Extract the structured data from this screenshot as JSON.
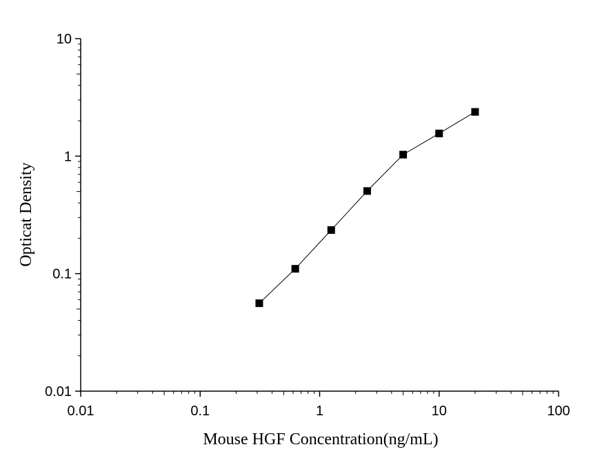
{
  "chart_data": {
    "type": "line",
    "title": "",
    "xlabel": "Mouse HGF  Concentration(ng/mL)",
    "ylabel": "Opticat Density",
    "xscale": "log",
    "yscale": "log",
    "xlim": [
      0.01,
      100
    ],
    "ylim": [
      0.01,
      10
    ],
    "x_ticks": [
      "0.01",
      "0.1",
      "1",
      "10",
      "100"
    ],
    "y_ticks": [
      "0.01",
      "0.1",
      "1",
      "10"
    ],
    "grid": false,
    "legend": "none",
    "marker": "square",
    "color": "#000000",
    "series": [
      {
        "x": [
          0.3125,
          0.625,
          1.25,
          2.5,
          5,
          10,
          20
        ],
        "y": [
          0.056,
          0.11,
          0.235,
          0.505,
          1.03,
          1.56,
          2.38
        ]
      }
    ]
  }
}
